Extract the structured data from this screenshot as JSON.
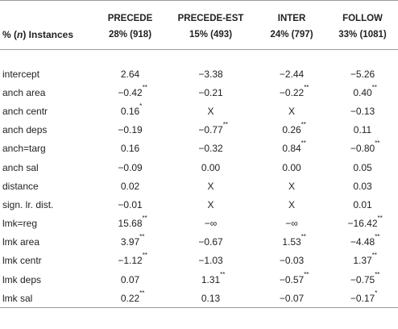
{
  "table": {
    "header_label_prefix": "% (",
    "header_label_n": "n",
    "header_label_suffix": ") Instances",
    "columns": [
      {
        "name": "PRECEDE",
        "stat": "28% (918)"
      },
      {
        "name": "PRECEDE-EST",
        "stat": "15% (493)"
      },
      {
        "name": "INTER",
        "stat": "24% (797)"
      },
      {
        "name": "FOLLOW",
        "stat": "33% (1081)"
      }
    ],
    "rows": [
      {
        "label": "intercept",
        "cells": [
          {
            "v": "2.64",
            "s": ""
          },
          {
            "v": "−3.38",
            "s": ""
          },
          {
            "v": "−2.44",
            "s": ""
          },
          {
            "v": "−5.26",
            "s": ""
          }
        ]
      },
      {
        "label": "anch area",
        "cells": [
          {
            "v": "−0.42",
            "s": "**"
          },
          {
            "v": "−0.21",
            "s": ""
          },
          {
            "v": "−0.22",
            "s": "**"
          },
          {
            "v": "0.40",
            "s": "**"
          }
        ]
      },
      {
        "label": "anch centr",
        "cells": [
          {
            "v": "0.16",
            "s": "*"
          },
          {
            "v": "X",
            "s": ""
          },
          {
            "v": "X",
            "s": ""
          },
          {
            "v": "−0.13",
            "s": ""
          }
        ]
      },
      {
        "label": "anch deps",
        "cells": [
          {
            "v": "−0.19",
            "s": ""
          },
          {
            "v": "−0.77",
            "s": "**"
          },
          {
            "v": "0.26",
            "s": "**"
          },
          {
            "v": "0.11",
            "s": ""
          }
        ]
      },
      {
        "label": "anch=targ",
        "cells": [
          {
            "v": "0.16",
            "s": ""
          },
          {
            "v": "−0.32",
            "s": ""
          },
          {
            "v": "0.84",
            "s": "**"
          },
          {
            "v": "−0.80",
            "s": "**"
          }
        ]
      },
      {
        "label": "anch sal",
        "cells": [
          {
            "v": "−0.09",
            "s": ""
          },
          {
            "v": "0.00",
            "s": ""
          },
          {
            "v": "0.00",
            "s": ""
          },
          {
            "v": "0.05",
            "s": ""
          }
        ]
      },
      {
        "label": "distance",
        "cells": [
          {
            "v": "0.02",
            "s": ""
          },
          {
            "v": "X",
            "s": ""
          },
          {
            "v": "X",
            "s": ""
          },
          {
            "v": "0.03",
            "s": ""
          }
        ]
      },
      {
        "label": "sign. lr. dist.",
        "cells": [
          {
            "v": "−0.01",
            "s": ""
          },
          {
            "v": "X",
            "s": ""
          },
          {
            "v": "X",
            "s": ""
          },
          {
            "v": "0.01",
            "s": ""
          }
        ]
      },
      {
        "label": "lmk=reg",
        "cells": [
          {
            "v": "15.68",
            "s": "**"
          },
          {
            "v": "−∞",
            "s": ""
          },
          {
            "v": "−∞",
            "s": ""
          },
          {
            "v": "−16.42",
            "s": "**"
          }
        ]
      },
      {
        "label": "lmk area",
        "cells": [
          {
            "v": "3.97",
            "s": "**"
          },
          {
            "v": "−0.67",
            "s": ""
          },
          {
            "v": "1.53",
            "s": "**"
          },
          {
            "v": "−4.48",
            "s": "**"
          }
        ]
      },
      {
        "label": "lmk centr",
        "cells": [
          {
            "v": "−1.12",
            "s": "**"
          },
          {
            "v": "−1.03",
            "s": ""
          },
          {
            "v": "−0.03",
            "s": ""
          },
          {
            "v": "1.37",
            "s": "**"
          }
        ]
      },
      {
        "label": "lmk deps",
        "cells": [
          {
            "v": "0.07",
            "s": ""
          },
          {
            "v": "1.31",
            "s": "**"
          },
          {
            "v": "−0.57",
            "s": "**"
          },
          {
            "v": "−0.75",
            "s": "**"
          }
        ]
      },
      {
        "label": "lmk sal",
        "cells": [
          {
            "v": "0.22",
            "s": "**"
          },
          {
            "v": "0.13",
            "s": ""
          },
          {
            "v": "−0.07",
            "s": ""
          },
          {
            "v": "−0.17",
            "s": "*"
          }
        ]
      }
    ]
  }
}
